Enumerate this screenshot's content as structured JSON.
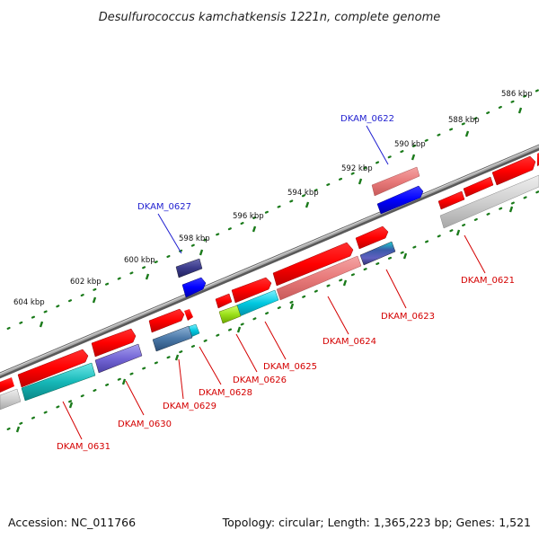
{
  "title": "Desulfurococcus kamchatkensis 1221n, complete genome",
  "footer": {
    "accession": "Accession: NC_011766",
    "topology": "Topology: circular; Length: 1,365,223 bp; Genes: 1,521"
  },
  "scale_labels": [
    "586 kbp",
    "588 kbp",
    "590 kbp",
    "592 kbp",
    "594 kbp",
    "596 kbp",
    "598 kbp",
    "600 kbp",
    "602 kbp",
    "604 kbp"
  ],
  "gene_labels": [
    {
      "text": "DKAM_0621",
      "color": "red"
    },
    {
      "text": "DKAM_0622",
      "color": "blue"
    },
    {
      "text": "DKAM_0623",
      "color": "red"
    },
    {
      "text": "DKAM_0624",
      "color": "red"
    },
    {
      "text": "DKAM_0625",
      "color": "red"
    },
    {
      "text": "DKAM_0626",
      "color": "red"
    },
    {
      "text": "DKAM_0627",
      "color": "blue"
    },
    {
      "text": "DKAM_0628",
      "color": "red"
    },
    {
      "text": "DKAM_0629",
      "color": "red"
    },
    {
      "text": "DKAM_0630",
      "color": "red"
    },
    {
      "text": "DKAM_0631",
      "color": "red"
    }
  ],
  "colors": {
    "label_red": "#d40000",
    "label_blue": "#1f1fd0",
    "tick_green": "#1a7a1a",
    "backbone": "#8a8a8a"
  }
}
